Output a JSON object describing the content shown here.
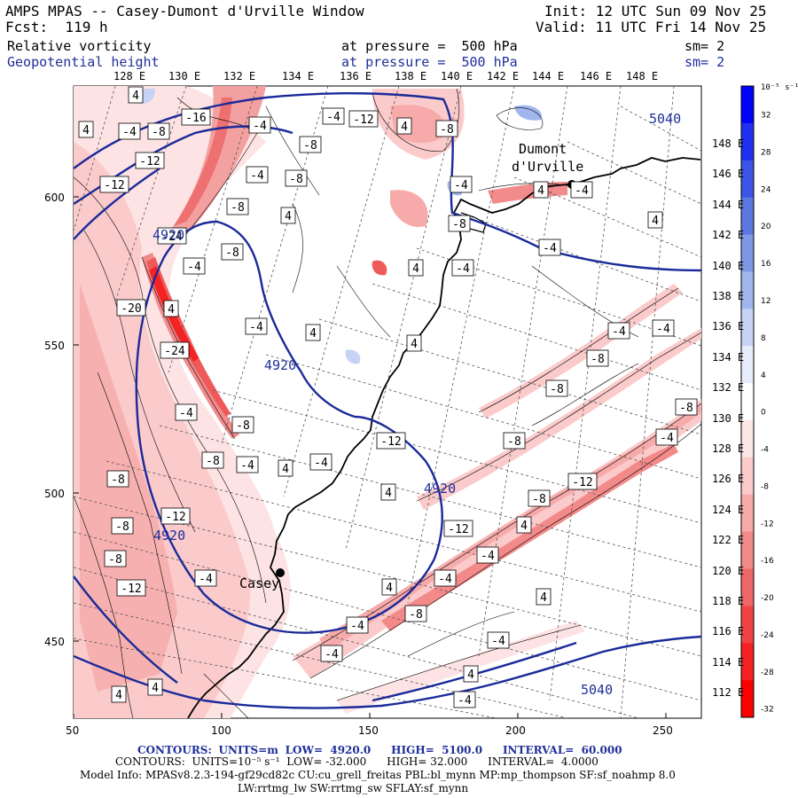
{
  "header": {
    "title": "AMPS MPAS -- Casey-Dumont d'Urville Window",
    "forecast": "Fcst:  119 h",
    "init": "Init: 12 UTC Sun 09 Nov 25",
    "valid": "Valid: 11 UTC Fri 14 Nov 25",
    "field1": "Relative vorticity",
    "field1_level": "at pressure =  500 hPa",
    "field1_smooth": "sm= 2",
    "field2": "Geopotential height",
    "field2_level": "at pressure =  500 hPa",
    "field2_smooth": "sm= 2"
  },
  "top_longitudes": [
    "128 E",
    "130 E",
    "132 E",
    "134 E",
    "136 E",
    "138 E",
    "140 E",
    "142 E",
    "144 E",
    "146 E",
    "148 E"
  ],
  "right_latitudes": [
    "148 E",
    "146 E",
    "144 E",
    "142 E",
    "140 E",
    "138 E",
    "136 E",
    "134 E",
    "132 E",
    "130 E",
    "128 E",
    "126 E",
    "124 E",
    "122 E",
    "120 E",
    "118 E",
    "116 E",
    "114 E",
    "112 E"
  ],
  "x_ticks": [
    "50",
    "100",
    "150",
    "200",
    "250"
  ],
  "y_ticks": [
    "600",
    "550",
    "500",
    "450"
  ],
  "places": [
    "Dumont",
    "d'Urville",
    "Casey"
  ],
  "height_labels": [
    "5040",
    "4920",
    "4920",
    "4920",
    "4920",
    "5040"
  ],
  "colorbar": {
    "unit": "10⁻⁵ s⁻¹",
    "labels": [
      "32",
      "28",
      "24",
      "20",
      "16",
      "12",
      "8",
      "4",
      "0",
      "-4",
      "-8",
      "-12",
      "-16",
      "-20",
      "-24",
      "-28",
      "-32"
    ],
    "colors": [
      "#0000ff",
      "#1f30f0",
      "#3d55e6",
      "#5c78e0",
      "#7f98e6",
      "#a2b6ee",
      "#c7d3f6",
      "#e8edfb",
      "#ffffff",
      "#fde6e6",
      "#fbcaca",
      "#f7aaaa",
      "#f38a8a",
      "#ef6868",
      "#f04444",
      "#f42222",
      "#ff0000"
    ]
  },
  "footer": {
    "line1_label": "CONTOURS:",
    "line1_units": "UNITS=m",
    "line1_low": "LOW=  4920.0",
    "line1_high": "HIGH=  5100.0",
    "line1_interval": "INTERVAL=  60.000",
    "line2": "CONTOURS:  UNITS=10⁻⁵ s⁻¹  LOW= -32.000      HIGH= 32.000      INTERVAL=  4.0000",
    "line3": "Model Info: MPASv8.2.3-194-gf29cd82c CU:cu_grell_freitas PBL:bl_mynn MP:mp_thompson SF:sf_noahmp 8.0",
    "line4": "LW:rrtmg_lw SW:rrtmg_sw SFLAY:sf_mynn"
  },
  "vort_labels": [
    "4",
    "4",
    "-4",
    "-8",
    "-16",
    "-4",
    "-4",
    "-12",
    "4",
    "-8",
    "-12",
    "-12",
    "-4",
    "-8",
    "-8",
    "-8",
    "4",
    "-4",
    "4",
    "-4",
    "-8",
    "4",
    "-4",
    "-24",
    "-4",
    "4",
    "-8",
    "-20",
    "-4",
    "4",
    "-4",
    "-24",
    "4",
    "-8",
    "4",
    "-8",
    "-4",
    "-4",
    "-8",
    "-8",
    "-4",
    "-4",
    "-4",
    "-12",
    "-8",
    "-4",
    "-8",
    "-8",
    "-12",
    "-8",
    "-12",
    "-8",
    "4",
    "-12",
    "4",
    "-4",
    "-4",
    "-8",
    "-12",
    "-4",
    "4",
    "-8",
    "4",
    "-4",
    "4",
    "-4",
    "-4",
    "4",
    "4",
    "4",
    "-4"
  ],
  "colors": {
    "height_contour": "#1a2a9a",
    "coast": "#000000",
    "grid": "#555555",
    "vort_outline": "#000000"
  }
}
